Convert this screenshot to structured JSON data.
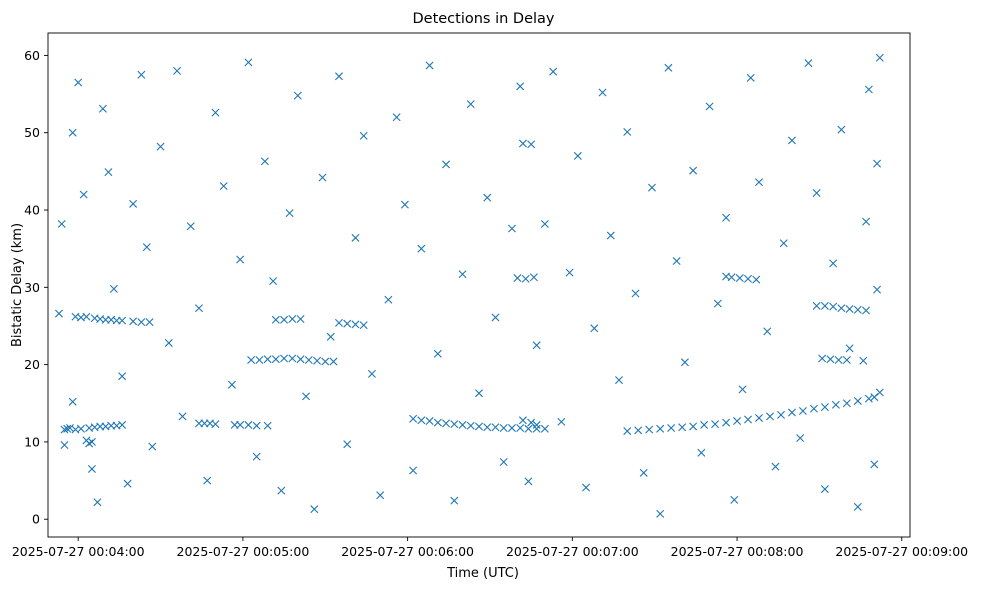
{
  "chart_data": {
    "type": "scatter",
    "title": "Detections in Delay",
    "xlabel": "Time (UTC)",
    "ylabel": "Bistatic Delay (km)",
    "marker": "x",
    "color": "#1f77b4",
    "grid": false,
    "xlim": [
      "2025-07-27 00:03:49",
      "2025-07-27 00:09:03"
    ],
    "ylim": [
      -2.3,
      62.9
    ],
    "x_ticks": [
      "2025-07-27 00:04:00",
      "2025-07-27 00:05:00",
      "2025-07-27 00:06:00",
      "2025-07-27 00:07:00",
      "2025-07-27 00:08:00",
      "2025-07-27 00:09:00"
    ],
    "y_ticks": [
      "0",
      "10",
      "20",
      "30",
      "40",
      "50",
      "60"
    ],
    "series": [
      {
        "points": [
          [
            "2025-07-27 00:03:55",
            11.6
          ],
          [
            "2025-07-27 00:03:56",
            11.7
          ],
          [
            "2025-07-27 00:03:57",
            11.8
          ],
          [
            "2025-07-27 00:03:59",
            11.6
          ],
          [
            "2025-07-27 00:04:01",
            11.7
          ],
          [
            "2025-07-27 00:04:04",
            11.8
          ],
          [
            "2025-07-27 00:04:06",
            11.9
          ],
          [
            "2025-07-27 00:04:08",
            12.0
          ],
          [
            "2025-07-27 00:04:10",
            12.0
          ],
          [
            "2025-07-27 00:04:12",
            12.1
          ],
          [
            "2025-07-27 00:04:14",
            12.1
          ],
          [
            "2025-07-27 00:04:16",
            12.2
          ],
          [
            "2025-07-27 00:04:03",
            10.2
          ],
          [
            "2025-07-27 00:04:05",
            10.0
          ],
          [
            "2025-07-27 00:04:04",
            9.8
          ],
          [
            "2025-07-27 00:03:59",
            26.2
          ],
          [
            "2025-07-27 00:04:01",
            26.1
          ],
          [
            "2025-07-27 00:04:03",
            26.2
          ],
          [
            "2025-07-27 00:04:06",
            26.0
          ],
          [
            "2025-07-27 00:04:08",
            25.9
          ],
          [
            "2025-07-27 00:04:10",
            25.8
          ],
          [
            "2025-07-27 00:04:12",
            25.8
          ],
          [
            "2025-07-27 00:04:14",
            25.7
          ],
          [
            "2025-07-27 00:04:16",
            25.7
          ],
          [
            "2025-07-27 00:04:20",
            25.6
          ],
          [
            "2025-07-27 00:04:23",
            25.5
          ],
          [
            "2025-07-27 00:04:26",
            25.5
          ],
          [
            "2025-07-27 00:04:44",
            12.4
          ],
          [
            "2025-07-27 00:04:46",
            12.4
          ],
          [
            "2025-07-27 00:04:48",
            12.4
          ],
          [
            "2025-07-27 00:04:50",
            12.3
          ],
          [
            "2025-07-27 00:04:57",
            12.2
          ],
          [
            "2025-07-27 00:04:59",
            12.2
          ],
          [
            "2025-07-27 00:05:02",
            12.2
          ],
          [
            "2025-07-27 00:05:05",
            12.1
          ],
          [
            "2025-07-27 00:05:09",
            12.1
          ],
          [
            "2025-07-27 00:05:03",
            20.6
          ],
          [
            "2025-07-27 00:05:06",
            20.6
          ],
          [
            "2025-07-27 00:05:09",
            20.7
          ],
          [
            "2025-07-27 00:05:12",
            20.7
          ],
          [
            "2025-07-27 00:05:15",
            20.8
          ],
          [
            "2025-07-27 00:05:18",
            20.8
          ],
          [
            "2025-07-27 00:05:21",
            20.7
          ],
          [
            "2025-07-27 00:05:24",
            20.6
          ],
          [
            "2025-07-27 00:05:27",
            20.5
          ],
          [
            "2025-07-27 00:05:30",
            20.4
          ],
          [
            "2025-07-27 00:05:33",
            20.4
          ],
          [
            "2025-07-27 00:05:12",
            25.8
          ],
          [
            "2025-07-27 00:05:15",
            25.8
          ],
          [
            "2025-07-27 00:05:18",
            25.9
          ],
          [
            "2025-07-27 00:05:21",
            25.9
          ],
          [
            "2025-07-27 00:05:35",
            25.4
          ],
          [
            "2025-07-27 00:05:38",
            25.3
          ],
          [
            "2025-07-27 00:05:41",
            25.2
          ],
          [
            "2025-07-27 00:05:44",
            25.1
          ],
          [
            "2025-07-27 00:06:02",
            13.0
          ],
          [
            "2025-07-27 00:06:05",
            12.8
          ],
          [
            "2025-07-27 00:06:08",
            12.7
          ],
          [
            "2025-07-27 00:06:11",
            12.5
          ],
          [
            "2025-07-27 00:06:14",
            12.4
          ],
          [
            "2025-07-27 00:06:17",
            12.3
          ],
          [
            "2025-07-27 00:06:20",
            12.2
          ],
          [
            "2025-07-27 00:06:23",
            12.1
          ],
          [
            "2025-07-27 00:06:26",
            12.0
          ],
          [
            "2025-07-27 00:06:29",
            11.9
          ],
          [
            "2025-07-27 00:06:32",
            11.9
          ],
          [
            "2025-07-27 00:06:35",
            11.8
          ],
          [
            "2025-07-27 00:06:38",
            11.8
          ],
          [
            "2025-07-27 00:06:41",
            11.8
          ],
          [
            "2025-07-27 00:06:44",
            11.7
          ],
          [
            "2025-07-27 00:06:47",
            11.7
          ],
          [
            "2025-07-27 00:06:50",
            11.7
          ],
          [
            "2025-07-27 00:06:42",
            12.8
          ],
          [
            "2025-07-27 00:06:45",
            12.5
          ],
          [
            "2025-07-27 00:06:47",
            12.2
          ],
          [
            "2025-07-27 00:06:40",
            31.2
          ],
          [
            "2025-07-27 00:06:43",
            31.1
          ],
          [
            "2025-07-27 00:06:46",
            31.3
          ],
          [
            "2025-07-27 00:06:42",
            48.6
          ],
          [
            "2025-07-27 00:06:45",
            48.5
          ],
          [
            "2025-07-27 00:07:20",
            11.4
          ],
          [
            "2025-07-27 00:07:24",
            11.5
          ],
          [
            "2025-07-27 00:07:28",
            11.6
          ],
          [
            "2025-07-27 00:07:32",
            11.7
          ],
          [
            "2025-07-27 00:07:36",
            11.8
          ],
          [
            "2025-07-27 00:07:40",
            11.9
          ],
          [
            "2025-07-27 00:07:44",
            12.0
          ],
          [
            "2025-07-27 00:07:48",
            12.2
          ],
          [
            "2025-07-27 00:07:52",
            12.3
          ],
          [
            "2025-07-27 00:07:56",
            12.5
          ],
          [
            "2025-07-27 00:08:00",
            12.7
          ],
          [
            "2025-07-27 00:08:04",
            12.9
          ],
          [
            "2025-07-27 00:08:08",
            13.1
          ],
          [
            "2025-07-27 00:08:12",
            13.3
          ],
          [
            "2025-07-27 00:08:16",
            13.5
          ],
          [
            "2025-07-27 00:08:20",
            13.8
          ],
          [
            "2025-07-27 00:08:24",
            14.0
          ],
          [
            "2025-07-27 00:08:28",
            14.3
          ],
          [
            "2025-07-27 00:08:32",
            14.5
          ],
          [
            "2025-07-27 00:08:36",
            14.8
          ],
          [
            "2025-07-27 00:08:40",
            15.0
          ],
          [
            "2025-07-27 00:08:44",
            15.3
          ],
          [
            "2025-07-27 00:08:48",
            15.6
          ],
          [
            "2025-07-27 00:08:50",
            15.8
          ],
          [
            "2025-07-27 00:07:56",
            31.4
          ],
          [
            "2025-07-27 00:07:58",
            31.3
          ],
          [
            "2025-07-27 00:08:01",
            31.2
          ],
          [
            "2025-07-27 00:08:04",
            31.1
          ],
          [
            "2025-07-27 00:08:07",
            31.0
          ],
          [
            "2025-07-27 00:08:29",
            27.6
          ],
          [
            "2025-07-27 00:08:32",
            27.6
          ],
          [
            "2025-07-27 00:08:35",
            27.5
          ],
          [
            "2025-07-27 00:08:38",
            27.3
          ],
          [
            "2025-07-27 00:08:41",
            27.2
          ],
          [
            "2025-07-27 00:08:44",
            27.1
          ],
          [
            "2025-07-27 00:08:47",
            27.0
          ],
          [
            "2025-07-27 00:08:31",
            20.8
          ],
          [
            "2025-07-27 00:08:34",
            20.7
          ],
          [
            "2025-07-27 00:08:37",
            20.6
          ],
          [
            "2025-07-27 00:08:40",
            20.6
          ],
          [
            "2025-07-27 00:08:46",
            20.5
          ],
          [
            "2025-07-27 00:03:54",
            38.2
          ],
          [
            "2025-07-27 00:03:58",
            50.0
          ],
          [
            "2025-07-27 00:04:00",
            56.5
          ],
          [
            "2025-07-27 00:03:53",
            26.6
          ],
          [
            "2025-07-27 00:03:55",
            9.6
          ],
          [
            "2025-07-27 00:03:58",
            15.2
          ],
          [
            "2025-07-27 00:04:02",
            42.0
          ],
          [
            "2025-07-27 00:04:05",
            6.5
          ],
          [
            "2025-07-27 00:04:07",
            2.2
          ],
          [
            "2025-07-27 00:04:09",
            53.1
          ],
          [
            "2025-07-27 00:04:11",
            44.9
          ],
          [
            "2025-07-27 00:04:13",
            29.8
          ],
          [
            "2025-07-27 00:04:16",
            18.5
          ],
          [
            "2025-07-27 00:04:18",
            4.6
          ],
          [
            "2025-07-27 00:04:20",
            40.8
          ],
          [
            "2025-07-27 00:04:23",
            57.5
          ],
          [
            "2025-07-27 00:04:25",
            35.2
          ],
          [
            "2025-07-27 00:04:27",
            9.4
          ],
          [
            "2025-07-27 00:04:30",
            48.2
          ],
          [
            "2025-07-27 00:04:33",
            22.8
          ],
          [
            "2025-07-27 00:04:36",
            58.0
          ],
          [
            "2025-07-27 00:04:38",
            13.3
          ],
          [
            "2025-07-27 00:04:41",
            37.9
          ],
          [
            "2025-07-27 00:04:44",
            27.3
          ],
          [
            "2025-07-27 00:04:47",
            5.0
          ],
          [
            "2025-07-27 00:04:50",
            52.6
          ],
          [
            "2025-07-27 00:04:53",
            43.1
          ],
          [
            "2025-07-27 00:04:56",
            17.4
          ],
          [
            "2025-07-27 00:04:59",
            33.6
          ],
          [
            "2025-07-27 00:05:02",
            59.1
          ],
          [
            "2025-07-27 00:05:05",
            8.1
          ],
          [
            "2025-07-27 00:05:08",
            46.3
          ],
          [
            "2025-07-27 00:05:11",
            30.8
          ],
          [
            "2025-07-27 00:05:14",
            3.7
          ],
          [
            "2025-07-27 00:05:17",
            39.6
          ],
          [
            "2025-07-27 00:05:20",
            54.8
          ],
          [
            "2025-07-27 00:05:23",
            15.9
          ],
          [
            "2025-07-27 00:05:26",
            1.3
          ],
          [
            "2025-07-27 00:05:29",
            44.2
          ],
          [
            "2025-07-27 00:05:32",
            23.6
          ],
          [
            "2025-07-27 00:05:35",
            57.3
          ],
          [
            "2025-07-27 00:05:38",
            9.7
          ],
          [
            "2025-07-27 00:05:41",
            36.4
          ],
          [
            "2025-07-27 00:05:44",
            49.6
          ],
          [
            "2025-07-27 00:05:47",
            18.8
          ],
          [
            "2025-07-27 00:05:50",
            3.1
          ],
          [
            "2025-07-27 00:05:53",
            28.4
          ],
          [
            "2025-07-27 00:05:56",
            52.0
          ],
          [
            "2025-07-27 00:05:59",
            40.7
          ],
          [
            "2025-07-27 00:06:02",
            6.3
          ],
          [
            "2025-07-27 00:06:05",
            35.0
          ],
          [
            "2025-07-27 00:06:08",
            58.7
          ],
          [
            "2025-07-27 00:06:11",
            21.4
          ],
          [
            "2025-07-27 00:06:14",
            45.9
          ],
          [
            "2025-07-27 00:06:17",
            2.4
          ],
          [
            "2025-07-27 00:06:20",
            31.7
          ],
          [
            "2025-07-27 00:06:23",
            53.7
          ],
          [
            "2025-07-27 00:06:26",
            16.3
          ],
          [
            "2025-07-27 00:06:29",
            41.6
          ],
          [
            "2025-07-27 00:06:32",
            26.1
          ],
          [
            "2025-07-27 00:06:35",
            7.4
          ],
          [
            "2025-07-27 00:06:38",
            37.6
          ],
          [
            "2025-07-27 00:06:41",
            56.0
          ],
          [
            "2025-07-27 00:06:44",
            4.9
          ],
          [
            "2025-07-27 00:06:47",
            22.5
          ],
          [
            "2025-07-27 00:06:50",
            38.2
          ],
          [
            "2025-07-27 00:06:53",
            57.9
          ],
          [
            "2025-07-27 00:06:56",
            12.6
          ],
          [
            "2025-07-27 00:06:59",
            31.9
          ],
          [
            "2025-07-27 00:07:02",
            47.0
          ],
          [
            "2025-07-27 00:07:05",
            4.1
          ],
          [
            "2025-07-27 00:07:08",
            24.7
          ],
          [
            "2025-07-27 00:07:11",
            55.2
          ],
          [
            "2025-07-27 00:07:14",
            36.7
          ],
          [
            "2025-07-27 00:07:17",
            18.0
          ],
          [
            "2025-07-27 00:07:20",
            50.1
          ],
          [
            "2025-07-27 00:07:23",
            29.2
          ],
          [
            "2025-07-27 00:07:26",
            6.0
          ],
          [
            "2025-07-27 00:07:29",
            42.9
          ],
          [
            "2025-07-27 00:07:32",
            0.7
          ],
          [
            "2025-07-27 00:07:35",
            58.4
          ],
          [
            "2025-07-27 00:07:38",
            33.4
          ],
          [
            "2025-07-27 00:07:41",
            20.3
          ],
          [
            "2025-07-27 00:07:44",
            45.1
          ],
          [
            "2025-07-27 00:07:47",
            8.6
          ],
          [
            "2025-07-27 00:07:50",
            53.4
          ],
          [
            "2025-07-27 00:07:53",
            27.9
          ],
          [
            "2025-07-27 00:07:56",
            39.0
          ],
          [
            "2025-07-27 00:07:59",
            2.5
          ],
          [
            "2025-07-27 00:08:02",
            16.8
          ],
          [
            "2025-07-27 00:08:05",
            57.1
          ],
          [
            "2025-07-27 00:08:08",
            43.6
          ],
          [
            "2025-07-27 00:08:11",
            24.3
          ],
          [
            "2025-07-27 00:08:14",
            6.8
          ],
          [
            "2025-07-27 00:08:17",
            35.7
          ],
          [
            "2025-07-27 00:08:20",
            49.0
          ],
          [
            "2025-07-27 00:08:23",
            10.5
          ],
          [
            "2025-07-27 00:08:26",
            59.0
          ],
          [
            "2025-07-27 00:08:29",
            42.2
          ],
          [
            "2025-07-27 00:08:32",
            3.9
          ],
          [
            "2025-07-27 00:08:35",
            33.1
          ],
          [
            "2025-07-27 00:08:38",
            50.4
          ],
          [
            "2025-07-27 00:08:41",
            22.1
          ],
          [
            "2025-07-27 00:08:44",
            1.6
          ],
          [
            "2025-07-27 00:08:47",
            38.5
          ],
          [
            "2025-07-27 00:08:48",
            55.6
          ],
          [
            "2025-07-27 00:08:50",
            7.1
          ],
          [
            "2025-07-27 00:08:51",
            29.7
          ],
          [
            "2025-07-27 00:08:52",
            59.7
          ],
          [
            "2025-07-27 00:08:52",
            16.4
          ],
          [
            "2025-07-27 00:08:51",
            46.0
          ]
        ]
      }
    ]
  }
}
